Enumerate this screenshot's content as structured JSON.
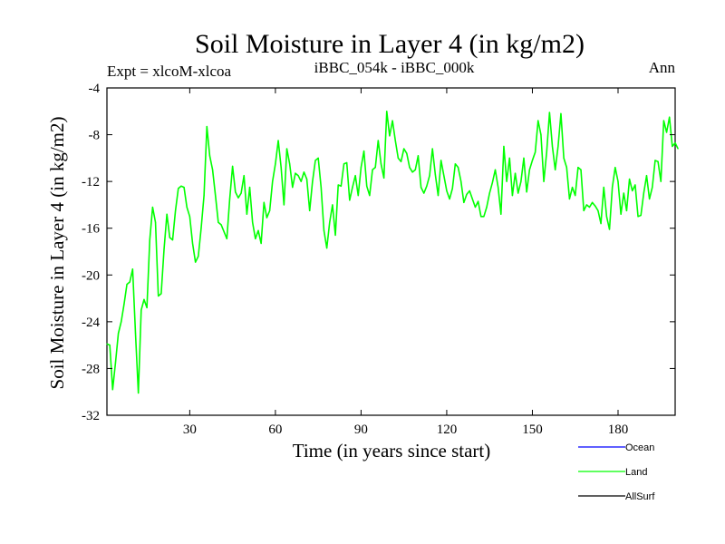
{
  "chart_data": {
    "type": "line",
    "title": "Soil Moisture in Layer 4 (in kg/m2)",
    "subtitle_left": "Expt = xlcoM-xlcoa",
    "subtitle_center": "iBBC_054k - iBBC_000k",
    "subtitle_right": "Ann",
    "xlabel": "Time (in years since start)",
    "ylabel": "Soil Moisture in Layer 4 (in kg/m2)",
    "xlim": [
      1,
      200
    ],
    "ylim": [
      -32,
      -4
    ],
    "xticks": [
      30,
      60,
      90,
      120,
      150,
      180
    ],
    "yticks": [
      -4,
      -8,
      -12,
      -16,
      -20,
      -24,
      -28,
      -32
    ],
    "xtick_labels": [
      "30",
      "60",
      "90",
      "120",
      "150",
      "180"
    ],
    "ytick_labels": [
      "-4",
      "-8",
      "-12",
      "-16",
      "-20",
      "-24",
      "-28",
      "-32"
    ],
    "legend": [
      {
        "name": "Ocean",
        "color": "#0000ff"
      },
      {
        "name": "Land",
        "color": "#00ff00"
      },
      {
        "name": "AllSurf",
        "color": "#000000"
      }
    ],
    "series": [
      {
        "name": "Land",
        "color": "#00ff00",
        "x_start": 1,
        "x_step": 1,
        "values": [
          -25.9,
          -26.0,
          -29.8,
          -27.5,
          -25.0,
          -24.0,
          -22.5,
          -20.8,
          -20.6,
          -19.5,
          -25.0,
          -30.1,
          -23.0,
          -22.1,
          -22.8,
          -17.0,
          -14.2,
          -15.5,
          -21.8,
          -21.6,
          -17.8,
          -14.8,
          -16.8,
          -17.0,
          -14.5,
          -12.6,
          -12.4,
          -12.5,
          -14.2,
          -15.0,
          -17.3,
          -18.9,
          -18.4,
          -16.0,
          -13.2,
          -7.3,
          -9.8,
          -11.0,
          -13.2,
          -15.5,
          -15.7,
          -16.3,
          -16.9,
          -13.5,
          -10.7,
          -12.9,
          -13.4,
          -13.0,
          -11.5,
          -14.8,
          -12.5,
          -15.5,
          -16.9,
          -16.2,
          -17.3,
          -13.8,
          -15.1,
          -14.5,
          -12.0,
          -10.5,
          -8.5,
          -10.8,
          -14.0,
          -9.2,
          -10.5,
          -12.5,
          -11.3,
          -11.5,
          -12.0,
          -11.2,
          -11.8,
          -14.5,
          -12.0,
          -10.2,
          -10.0,
          -12.5,
          -16.2,
          -17.7,
          -15.5,
          -14.0,
          -16.6,
          -12.3,
          -12.4,
          -10.5,
          -10.4,
          -13.6,
          -12.5,
          -11.5,
          -13.2,
          -10.8,
          -9.4,
          -12.4,
          -13.2,
          -11.0,
          -10.8,
          -8.5,
          -10.5,
          -11.7,
          -6.0,
          -8.1,
          -6.8,
          -8.5,
          -10.0,
          -10.3,
          -9.2,
          -9.6,
          -10.8,
          -11.2,
          -11.0,
          -9.8,
          -12.5,
          -13.0,
          -12.4,
          -11.5,
          -9.2,
          -11.4,
          -13.2,
          -10.2,
          -11.5,
          -12.8,
          -13.5,
          -12.6,
          -10.5,
          -10.8,
          -12.0,
          -13.8,
          -13.1,
          -12.8,
          -13.5,
          -14.2,
          -13.7,
          -15.0,
          -15.0,
          -14.2,
          -13.0,
          -12.1,
          -11.0,
          -12.5,
          -14.8,
          -9.0,
          -12.0,
          -10.0,
          -13.2,
          -11.3,
          -13.0,
          -12.0,
          -10.0,
          -12.9,
          -11.0,
          -10.2,
          -9.5,
          -6.8,
          -8.0,
          -12.0,
          -9.5,
          -6.1,
          -9.0,
          -11.0,
          -9.0,
          -6.2,
          -10.0,
          -10.8,
          -13.5,
          -12.5,
          -13.2,
          -10.8,
          -11.0,
          -14.5,
          -14.0,
          -14.2,
          -13.8,
          -14.1,
          -14.5,
          -15.6,
          -12.5,
          -15.0,
          -16.1,
          -12.5,
          -10.8,
          -12.0,
          -14.8,
          -13.0,
          -14.5,
          -11.8,
          -12.8,
          -12.3,
          -15.0,
          -14.9,
          -13.0,
          -11.5,
          -13.5,
          -12.5,
          -10.2,
          -10.3,
          -12.0,
          -6.8,
          -7.8,
          -6.5,
          -9.0,
          -8.7,
          -9.2
        ]
      }
    ]
  }
}
